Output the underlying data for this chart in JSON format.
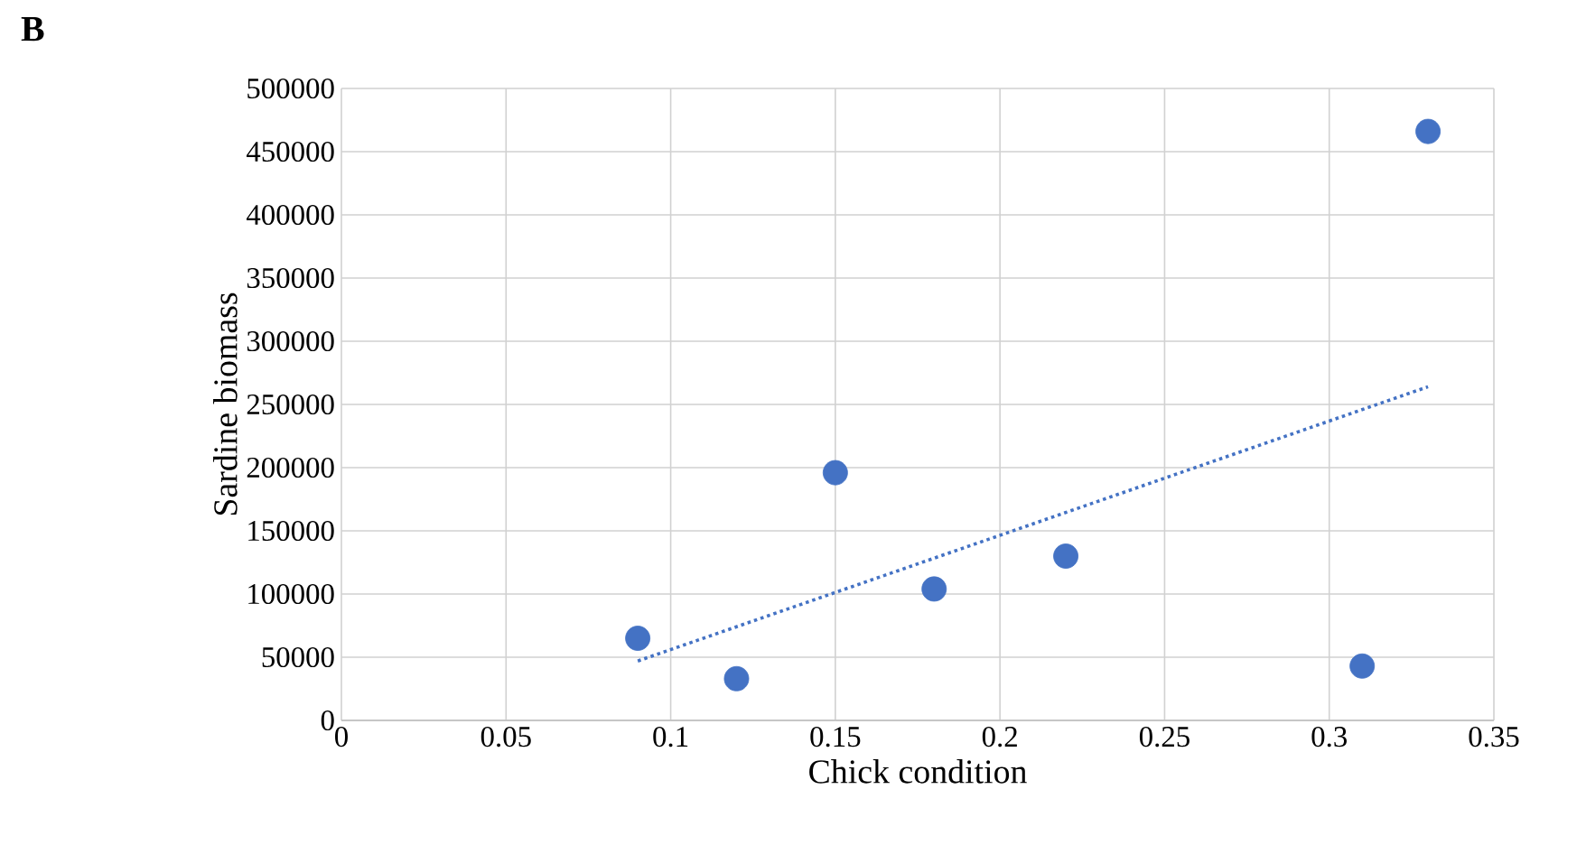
{
  "chart_data": {
    "type": "scatter",
    "xlabel": "Chick condition",
    "ylabel": "Sardine biomass",
    "annotations": [
      "B"
    ],
    "x": [
      0.09,
      0.12,
      0.15,
      0.18,
      0.22,
      0.31,
      0.33
    ],
    "series": [
      {
        "color": "#4472c4",
        "marker": "circle",
        "values": [
          65000,
          33000,
          196000,
          104000,
          130000,
          43000,
          466000
        ]
      },
      {
        "type": "line",
        "color": "#4472c4",
        "line_style": "dotted",
        "marker": "none",
        "x": [
          0.09,
          0.33
        ],
        "values": [
          47000,
          264000
        ]
      }
    ],
    "xlim": [
      0,
      0.35
    ],
    "xticks": [
      0,
      0.05,
      0.1,
      0.15,
      0.2,
      0.25,
      0.3,
      0.35
    ],
    "ylim": [
      0,
      500000
    ],
    "yticks": [
      0,
      50000,
      100000,
      150000,
      200000,
      250000,
      300000,
      350000,
      400000,
      450000,
      500000
    ],
    "grid": true
  }
}
